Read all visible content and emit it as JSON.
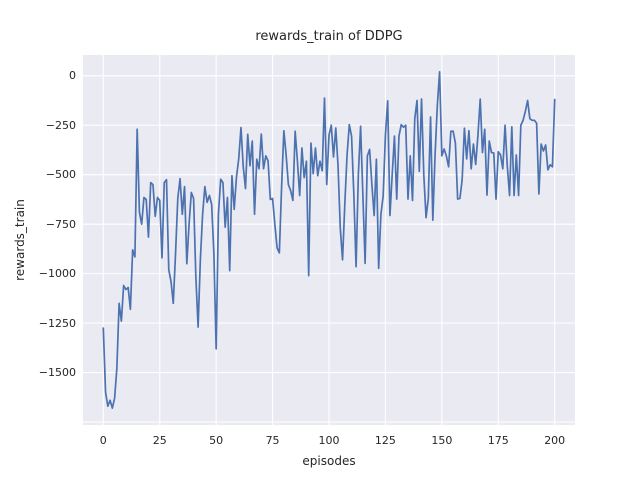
{
  "figure_title": "rewards_train of DDPG",
  "chart_data": {
    "type": "line",
    "title": "rewards_train of DDPG",
    "xlabel": "episodes",
    "ylabel": "rewards_train",
    "grid": true,
    "legend": null,
    "plot_background": "#eaeaf2",
    "grid_color": "#ffffff",
    "text_color": "#262626",
    "xlim": [
      -9,
      209
    ],
    "ylim": [
      -1765,
      105
    ],
    "xticks": [
      0,
      25,
      50,
      75,
      100,
      125,
      150,
      175,
      200
    ],
    "xtick_labels": [
      "0",
      "25",
      "50",
      "75",
      "100",
      "125",
      "150",
      "175",
      "200"
    ],
    "yticks": [
      0,
      -250,
      -500,
      -750,
      -1000,
      -1250,
      -1500
    ],
    "ytick_labels": [
      "0",
      "−250",
      "−500",
      "−750",
      "−1000",
      "−1250",
      "−1500"
    ],
    "ygrid_extra": [
      -1750
    ],
    "series": [
      {
        "name": "rewards_train",
        "color": "#4c72b0",
        "x": [
          0,
          1,
          2,
          3,
          4,
          5,
          6,
          7,
          8,
          9,
          10,
          11,
          12,
          13,
          14,
          15,
          16,
          17,
          18,
          19,
          20,
          21,
          22,
          23,
          24,
          25,
          26,
          27,
          28,
          29,
          30,
          31,
          32,
          33,
          34,
          35,
          36,
          37,
          38,
          39,
          40,
          41,
          42,
          43,
          44,
          45,
          46,
          47,
          48,
          49,
          50,
          51,
          52,
          53,
          54,
          55,
          56,
          57,
          58,
          59,
          60,
          61,
          62,
          63,
          64,
          65,
          66,
          67,
          68,
          69,
          70,
          71,
          72,
          73,
          74,
          75,
          76,
          77,
          78,
          79,
          80,
          81,
          82,
          83,
          84,
          85,
          86,
          87,
          88,
          89,
          90,
          91,
          92,
          93,
          94,
          95,
          96,
          97,
          98,
          99,
          100,
          101,
          102,
          103,
          104,
          105,
          106,
          107,
          108,
          109,
          110,
          111,
          112,
          113,
          114,
          115,
          116,
          117,
          118,
          119,
          120,
          121,
          122,
          123,
          124,
          125,
          126,
          127,
          128,
          129,
          130,
          131,
          132,
          133,
          134,
          135,
          136,
          137,
          138,
          139,
          140,
          141,
          142,
          143,
          144,
          145,
          146,
          147,
          148,
          149,
          150,
          151,
          152,
          153,
          154,
          155,
          156,
          157,
          158,
          159,
          160,
          161,
          162,
          163,
          164,
          165,
          166,
          167,
          168,
          169,
          170,
          171,
          172,
          173,
          174,
          175,
          176,
          177,
          178,
          179,
          180,
          181,
          182,
          183,
          184,
          185,
          186,
          187,
          188,
          189,
          190,
          191,
          192,
          193,
          194,
          195,
          196,
          197,
          198,
          199,
          200
        ],
        "y": [
          -1275,
          -1600,
          -1670,
          -1640,
          -1680,
          -1630,
          -1480,
          -1150,
          -1240,
          -1060,
          -1080,
          -1070,
          -1180,
          -880,
          -915,
          -270,
          -690,
          -750,
          -615,
          -625,
          -815,
          -540,
          -550,
          -710,
          -615,
          -630,
          -920,
          -540,
          -525,
          -980,
          -1040,
          -1150,
          -900,
          -620,
          -520,
          -700,
          -560,
          -950,
          -750,
          -590,
          -620,
          -1015,
          -1270,
          -930,
          -700,
          -560,
          -640,
          -605,
          -650,
          -900,
          -1380,
          -700,
          -523,
          -540,
          -765,
          -615,
          -985,
          -505,
          -675,
          -512,
          -420,
          -262,
          -460,
          -570,
          -296,
          -455,
          -330,
          -700,
          -422,
          -470,
          -295,
          -470,
          -405,
          -430,
          -625,
          -620,
          -750,
          -870,
          -895,
          -560,
          -278,
          -400,
          -550,
          -580,
          -630,
          -280,
          -430,
          -605,
          -365,
          -515,
          -432,
          -1010,
          -340,
          -495,
          -365,
          -505,
          -432,
          -480,
          -113,
          -549,
          -300,
          -250,
          -410,
          -264,
          -455,
          -771,
          -930,
          -650,
          -400,
          -247,
          -305,
          -600,
          -965,
          -500,
          -255,
          -600,
          -948,
          -405,
          -372,
          -550,
          -706,
          -422,
          -973,
          -700,
          -608,
          -300,
          -127,
          -706,
          -500,
          -305,
          -623,
          -305,
          -247,
          -260,
          -250,
          -623,
          -405,
          -630,
          -217,
          -125,
          -483,
          -117,
          -500,
          -717,
          -620,
          -208,
          -730,
          -400,
          -150,
          20,
          -405,
          -370,
          -405,
          -460,
          -280,
          -280,
          -340,
          -623,
          -620,
          -525,
          -265,
          -420,
          -278,
          -470,
          -345,
          -448,
          -300,
          -118,
          -388,
          -270,
          -603,
          -330,
          -388,
          -390,
          -623,
          -384,
          -400,
          -470,
          -250,
          -455,
          -605,
          -258,
          -605,
          -400,
          -605,
          -250,
          -225,
          -180,
          -125,
          -217,
          -225,
          -225,
          -240,
          -597,
          -345,
          -380,
          -350,
          -475,
          -450,
          -460,
          -120
        ]
      }
    ]
  }
}
